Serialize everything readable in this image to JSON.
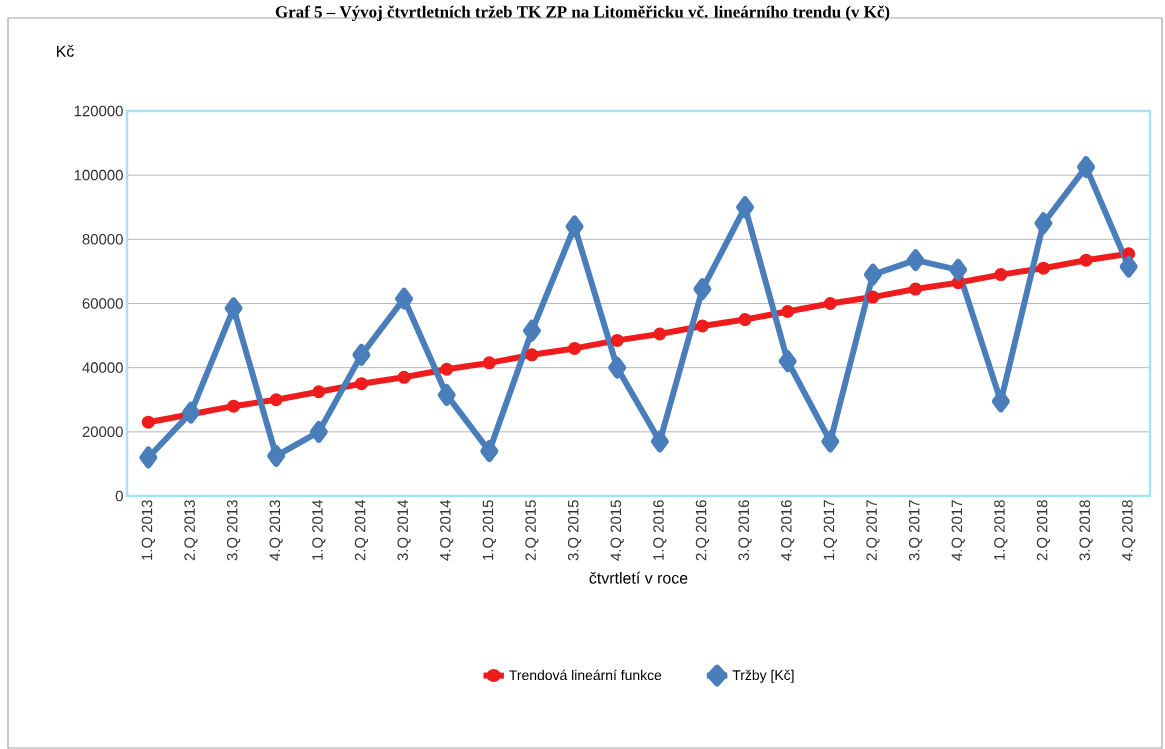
{
  "chart_data": {
    "type": "line",
    "title": "Graf 5 – Vývoj čtvrtletních tržeb TK ZP na Litoměřicku vč. lineárního trendu (v Kč)",
    "xlabel": "čtvrtletí v roce",
    "ylabel": "Kč",
    "categories": [
      "1.Q 2013",
      "2.Q 2013",
      "3.Q 2013",
      "4.Q 2013",
      "1.Q 2014",
      "2.Q 2014",
      "3.Q 2014",
      "4.Q 2014",
      "1.Q 2015",
      "2.Q 2015",
      "3.Q 2015",
      "4.Q 2015",
      "1.Q 2016",
      "2.Q 2016",
      "3.Q 2016",
      "4.Q 2016",
      "1.Q 2017",
      "2.Q 2017",
      "3.Q 2017",
      "4.Q 2017",
      "1.Q 2018",
      "2.Q 2018",
      "3.Q 2018",
      "4.Q 2018"
    ],
    "series": [
      {
        "name": "Trendová lineární funkce",
        "color": "#ee1c1c",
        "marker": "circle",
        "values": [
          23000,
          25500,
          28000,
          30000,
          32500,
          35000,
          37000,
          39500,
          41500,
          44000,
          46000,
          48500,
          50500,
          53000,
          55000,
          57500,
          60000,
          62000,
          64500,
          66500,
          69000,
          71000,
          73500,
          75500
        ]
      },
      {
        "name": "Tržby [Kč]",
        "color": "#4a7ebb",
        "marker": "diamond",
        "values": [
          12000,
          26000,
          58500,
          12500,
          20000,
          44000,
          61500,
          31500,
          14000,
          51500,
          84000,
          40000,
          17000,
          64500,
          90000,
          42000,
          17000,
          69000,
          73500,
          70500,
          29500,
          85000,
          102500,
          71500
        ]
      }
    ],
    "ylim": [
      0,
      120000
    ],
    "yticks": [
      0,
      20000,
      40000,
      60000,
      80000,
      100000,
      120000
    ],
    "grid": "y",
    "legend": "bottom",
    "line_style": "solid"
  }
}
